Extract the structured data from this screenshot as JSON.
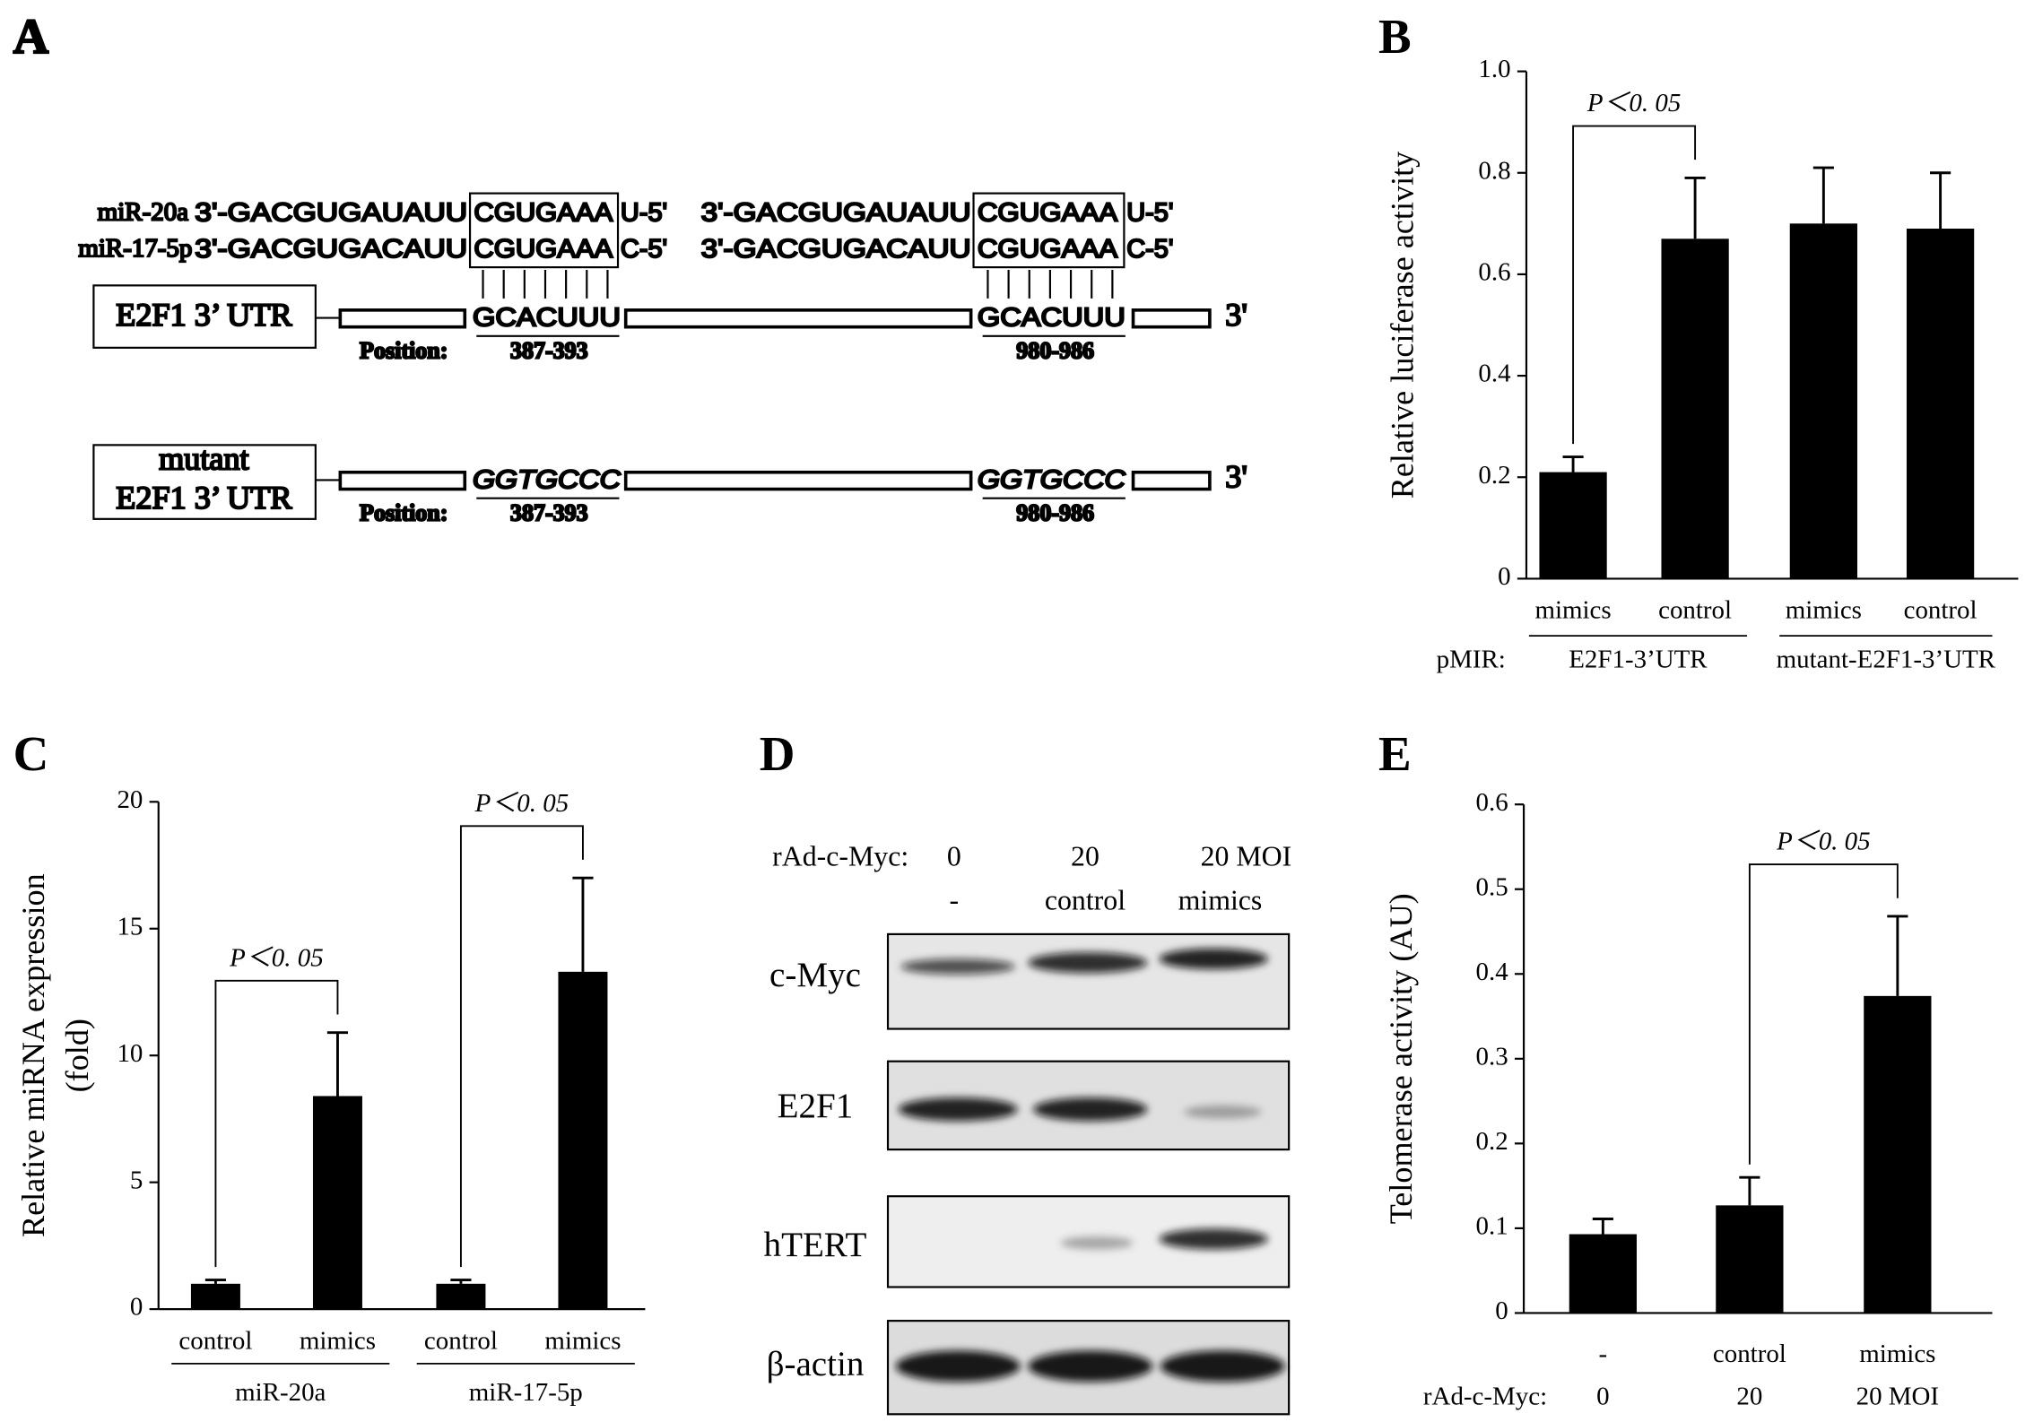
{
  "panels": {
    "A": {
      "label": "A",
      "mirnas": [
        {
          "name": "miR-20a",
          "prefix": "3'-GACGUGAUAUU",
          "seed": "CGUGAAA",
          "suffix": "U-5'"
        },
        {
          "name": "miR-17-5p",
          "prefix": "3'-GACGUGACAUU",
          "seed": "CGUGAAA",
          "suffix": "C-5'"
        }
      ],
      "utr": {
        "label": "E2F1 3’ UTR",
        "sites": [
          "GCACUUU",
          "GCACUUU"
        ],
        "end": "3'",
        "position_label": "Position:",
        "positions": [
          "387-393",
          "980-986"
        ]
      },
      "mutant": {
        "label_lines": [
          "mutant",
          "E2F1 3’ UTR"
        ],
        "sites": [
          "GGTGCCC",
          "GGTGCCC"
        ],
        "end": "3'",
        "position_label": "Position:",
        "positions": [
          "387-393",
          "980-986"
        ]
      }
    },
    "D": {
      "label": "D",
      "header_label": "rAd-c-Myc:",
      "doses": [
        "0",
        "20",
        "20 MOI"
      ],
      "treatments": [
        "-",
        "control",
        "mimics"
      ],
      "rows": [
        "c-Myc",
        "E2F1",
        "hTERT",
        "β-actin"
      ]
    }
  },
  "chart_data": [
    {
      "type": "bar",
      "label": "B",
      "ylabel": [
        "Relative luciferase activity"
      ],
      "categories": [
        "mimics",
        "control",
        "mimics",
        "control"
      ],
      "values": [
        0.21,
        0.67,
        0.7,
        0.69
      ],
      "errors": [
        0.03,
        0.12,
        0.11,
        0.11
      ],
      "color": "#000000",
      "group_title": "pMIR:",
      "groups": [
        "E2F1-3’UTR",
        "mutant-E2F1-3’UTR"
      ],
      "ylim": [
        0,
        1
      ],
      "yticks": [
        0,
        0.2,
        0.4,
        0.6,
        0.8,
        {
          "value": 1,
          "label": "1.0"
        }
      ],
      "annotations": [
        {
          "text": "P＜0. 05",
          "between": [
            0,
            1
          ]
        }
      ]
    },
    {
      "type": "bar",
      "label": "C",
      "ylabel": [
        "Relative miRNA expression",
        "(fold)"
      ],
      "categories": [
        "control",
        "mimics",
        "control",
        "mimics"
      ],
      "values": [
        1.0,
        8.4,
        1.0,
        13.3
      ],
      "errors": [
        0.15,
        2.5,
        0.15,
        3.7
      ],
      "color": "#000000",
      "groups": [
        "miR-20a",
        "miR-17-5p"
      ],
      "ylim": [
        0,
        20
      ],
      "yticks": [
        0,
        5,
        10,
        15,
        20
      ],
      "annotations": [
        {
          "text": "P＜0. 05",
          "between": [
            0,
            1
          ]
        },
        {
          "text": "P＜0. 05",
          "between": [
            2,
            3
          ]
        }
      ]
    },
    {
      "type": "bar",
      "label": "E",
      "ylabel": [
        "Telomerase activity (AU)"
      ],
      "categories": [
        "-",
        "control",
        "mimics"
      ],
      "values": [
        0.093,
        0.127,
        0.374
      ],
      "errors": [
        0.018,
        0.033,
        0.094
      ],
      "color": "#000000",
      "row2_title": "rAd-c-Myc:",
      "row2": [
        "0",
        "20",
        "20 MOI"
      ],
      "ylim": [
        0,
        0.6
      ],
      "yticks": [
        0,
        0.1,
        0.2,
        0.3,
        0.4,
        0.5,
        0.6
      ],
      "annotations": [
        {
          "text": "P＜0. 05",
          "between": [
            1,
            2
          ]
        }
      ]
    }
  ]
}
